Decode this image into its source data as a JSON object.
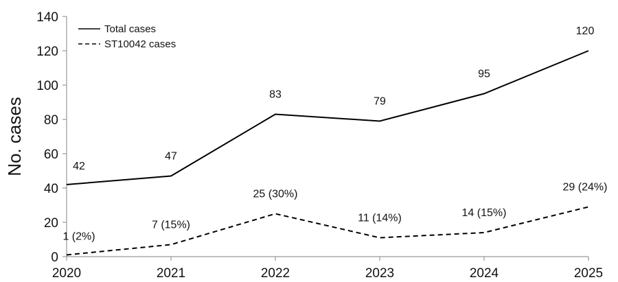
{
  "chart_data": {
    "type": "line",
    "title": "",
    "xlabel": "",
    "ylabel": "No. cases",
    "x": [
      "2020",
      "2021",
      "2022",
      "2023",
      "2024",
      "2025"
    ],
    "ylim": [
      0,
      140
    ],
    "yticks": [
      0,
      20,
      40,
      60,
      80,
      100,
      120,
      140
    ],
    "grid": false,
    "legend_position": "top-left",
    "series": [
      {
        "name": "Total cases",
        "style": "solid",
        "color": "#000000",
        "values": [
          42,
          47,
          83,
          79,
          95,
          120
        ],
        "labels": [
          "42",
          "47",
          "83",
          "79",
          "95",
          "120"
        ]
      },
      {
        "name": "ST10042 cases",
        "style": "dashed",
        "color": "#000000",
        "values": [
          1,
          7,
          25,
          11,
          14,
          29
        ],
        "labels": [
          "1 (2%)",
          "7 (15%)",
          "25 (30%)",
          "11 (14%)",
          "14 (15%)",
          "29 (24%)"
        ]
      }
    ]
  }
}
